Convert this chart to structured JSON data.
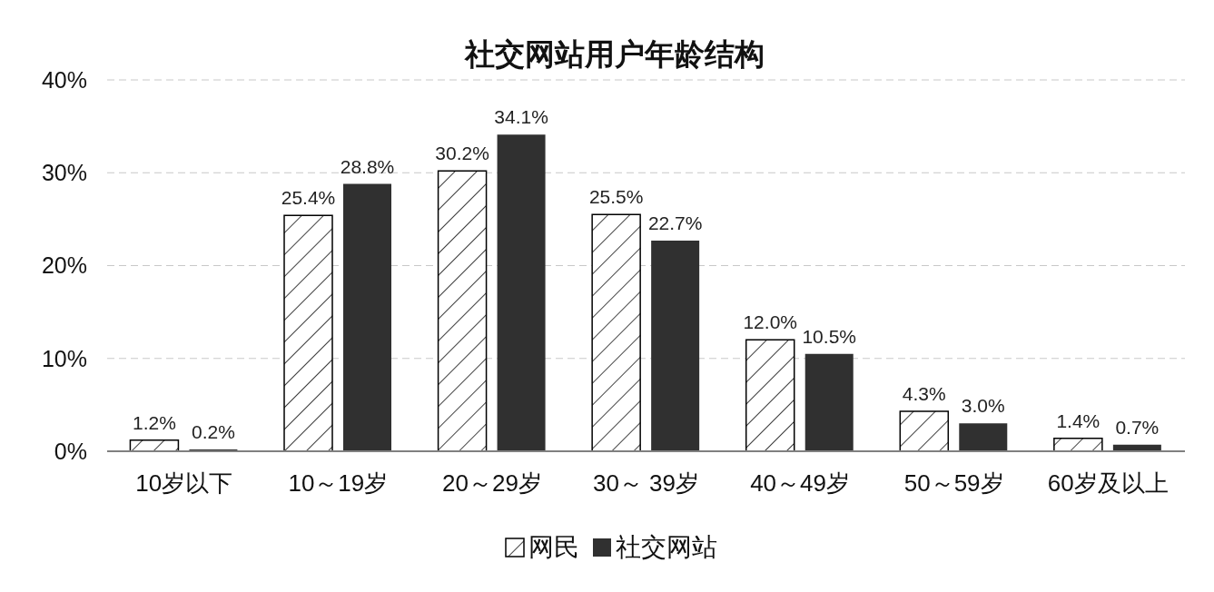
{
  "chart_data": {
    "type": "bar",
    "title": "社交网站用户年龄结构",
    "categories": [
      "10岁以下",
      "10～19岁",
      "20～29岁",
      "30～ 39岁",
      "40～49岁",
      "50～59岁",
      "60岁及以上"
    ],
    "series": [
      {
        "name": "网民",
        "color": "#ffffff",
        "values": [
          1.2,
          25.4,
          30.2,
          25.5,
          12.0,
          4.3,
          1.4
        ],
        "value_labels": [
          "1.2%",
          "25.4%",
          "30.2%",
          "25.5%",
          "12.0%",
          "4.3%",
          "1.4%"
        ]
      },
      {
        "name": "社交网站",
        "color": "#303030",
        "values": [
          0.2,
          28.8,
          34.1,
          22.7,
          10.5,
          3.0,
          0.7
        ],
        "value_labels": [
          "0.2%",
          "28.8%",
          "34.1%",
          "22.7%",
          "10.5%",
          "3.0%",
          "0.7%"
        ]
      }
    ],
    "ylim": [
      0,
      40
    ],
    "yticks": [
      {
        "value": 0,
        "label": "0%"
      },
      {
        "value": 10,
        "label": "10%"
      },
      {
        "value": 20,
        "label": "20%"
      },
      {
        "value": 30,
        "label": "30%"
      },
      {
        "value": 40,
        "label": "40%"
      }
    ],
    "grid": "y",
    "legend": "bottom"
  }
}
